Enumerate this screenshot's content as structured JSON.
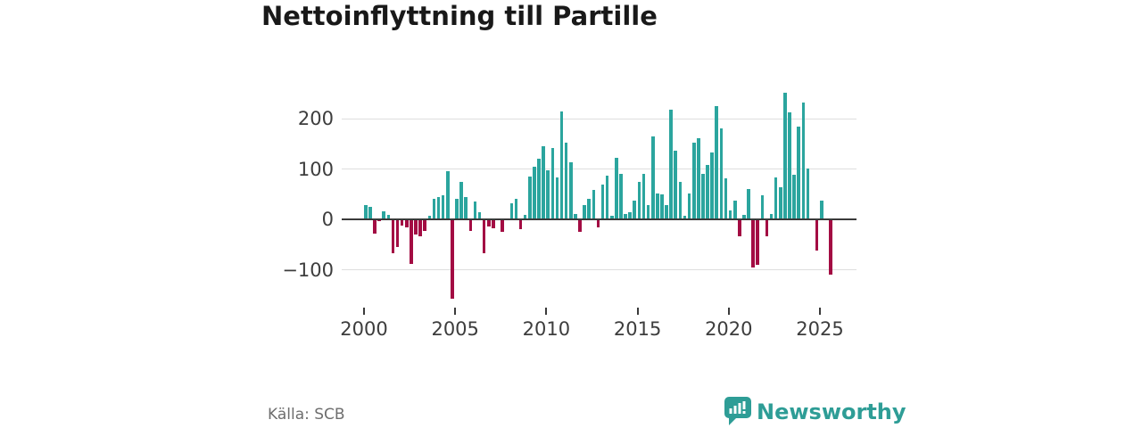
{
  "header": {
    "title": "Nettoinflyttning till Partille"
  },
  "footer": {
    "source": "Källa: SCB",
    "brand": "Newsworthy",
    "logo_icon": "newsworthy-speech-bubble-bar-chart-icon"
  },
  "colors": {
    "positive_bar": "#2ba59e",
    "negative_bar": "#a30c43",
    "brand_teal": "#2e9d96",
    "grid": "#dedede",
    "axis_line": "#3a3a3a",
    "tick_text": "#3d3d3d",
    "title_text": "#191919",
    "source_text": "#6e6e6e"
  },
  "chart_data": {
    "type": "bar",
    "title": "Nettoinflyttning till Partille",
    "x_unit": "quarter",
    "start": "2000 Q1",
    "end": "2025 Q3",
    "x_tick_labels": [
      "2000",
      "2005",
      "2010",
      "2015",
      "2020",
      "2025"
    ],
    "y_ticks": [
      200,
      100,
      0,
      -100
    ],
    "y_tick_labels": [
      "200",
      "100",
      "0",
      "−100"
    ],
    "ylim": [
      -170,
      265
    ],
    "grid": true,
    "legend": "none",
    "positive_color": "#2ba59e",
    "negative_color": "#a30c43",
    "values": [
      29,
      26,
      -26,
      -2,
      17,
      10,
      -65,
      -52,
      -10,
      -14,
      -86,
      -28,
      -32,
      -21,
      8,
      41,
      45,
      48,
      95,
      -154,
      41,
      74,
      45,
      -20,
      35,
      14,
      -65,
      -11,
      -15,
      0,
      -23,
      0,
      32,
      42,
      -18,
      9,
      85,
      104,
      121,
      146,
      98,
      141,
      83,
      214,
      152,
      114,
      11,
      -23,
      29,
      41,
      58,
      -14,
      70,
      87,
      8,
      122,
      91,
      11,
      15,
      38,
      75,
      90,
      28,
      164,
      52,
      50,
      28,
      218,
      137,
      75,
      8,
      51,
      153,
      162,
      90,
      108,
      133,
      225,
      180,
      81,
      19,
      37,
      -31,
      10,
      60,
      -93,
      -88,
      49,
      -31,
      11,
      84,
      64,
      251,
      213,
      88,
      184,
      232,
      101,
      0,
      -59,
      38,
      0,
      -108
    ]
  }
}
